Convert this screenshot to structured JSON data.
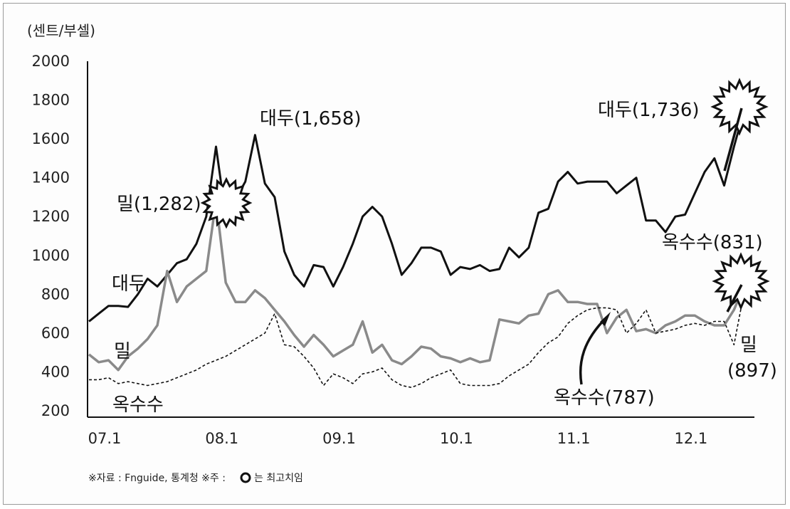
{
  "chart_data": {
    "type": "line",
    "unit_label": "(센트/부셀)",
    "x_ticks": [
      "07.1",
      "08.1",
      "09.1",
      "10.1",
      "11.1",
      "12.1"
    ],
    "y_ticks": [
      200,
      400,
      600,
      800,
      1000,
      1200,
      1400,
      1600,
      1800,
      2000
    ],
    "ylim": [
      200,
      2000
    ],
    "grid": false,
    "series": [
      {
        "name": "대두",
        "color": "#111111",
        "style": "solid",
        "values": [
          660,
          700,
          740,
          740,
          735,
          800,
          880,
          840,
          900,
          960,
          980,
          1060,
          1200,
          1560,
          1200,
          1290,
          1380,
          1620,
          1370,
          1300,
          1020,
          900,
          840,
          950,
          940,
          840,
          940,
          1060,
          1200,
          1250,
          1200,
          1060,
          900,
          960,
          1040,
          1040,
          1020,
          900,
          940,
          930,
          950,
          920,
          930,
          1040,
          990,
          1040,
          1220,
          1240,
          1380,
          1430,
          1370,
          1380,
          1380,
          1380,
          1320,
          1360,
          1400,
          1180,
          1180,
          1120,
          1200,
          1210,
          1320,
          1430,
          1500,
          1360,
          1560,
          1740
        ]
      },
      {
        "name": "밀",
        "color": "#8a8a8a",
        "style": "solid",
        "values": [
          490,
          450,
          460,
          410,
          480,
          520,
          570,
          640,
          920,
          760,
          840,
          880,
          920,
          1282,
          860,
          760,
          760,
          820,
          780,
          720,
          660,
          590,
          530,
          590,
          540,
          480,
          510,
          540,
          660,
          500,
          540,
          460,
          440,
          480,
          530,
          520,
          480,
          470,
          450,
          470,
          450,
          460,
          670,
          660,
          650,
          690,
          700,
          800,
          820,
          760,
          760,
          750,
          750,
          600,
          680,
          720,
          610,
          620,
          600,
          640,
          660,
          690,
          690,
          660,
          640,
          640,
          720,
          840
        ]
      },
      {
        "name": "옥수수",
        "color": "#111111",
        "style": "dotted",
        "values": [
          360,
          360,
          370,
          340,
          350,
          340,
          330,
          340,
          350,
          370,
          390,
          410,
          440,
          460,
          480,
          510,
          540,
          570,
          600,
          700,
          540,
          530,
          480,
          420,
          330,
          390,
          370,
          340,
          390,
          400,
          420,
          360,
          330,
          320,
          340,
          370,
          390,
          410,
          340,
          330,
          330,
          330,
          340,
          380,
          410,
          440,
          500,
          550,
          580,
          650,
          690,
          720,
          730,
          730,
          720,
          600,
          650,
          720,
          600,
          610,
          620,
          640,
          650,
          640,
          660,
          660,
          540,
          800
        ]
      }
    ],
    "annotations": [
      {
        "text": "대두(1,658)"
      },
      {
        "text": "대두(1,736)"
      },
      {
        "text": "밀(1,282)"
      },
      {
        "text": "옥수수(831)"
      },
      {
        "text": "대두"
      },
      {
        "text": "밀"
      },
      {
        "text": "옥수수"
      },
      {
        "text": "옥수수(787)"
      },
      {
        "text": "밀"
      },
      {
        "text": "(897)"
      }
    ],
    "footnote": "※자료 : Fnguide, 통계청 ※주 : ",
    "footnote_tail": "는 최고치임"
  }
}
